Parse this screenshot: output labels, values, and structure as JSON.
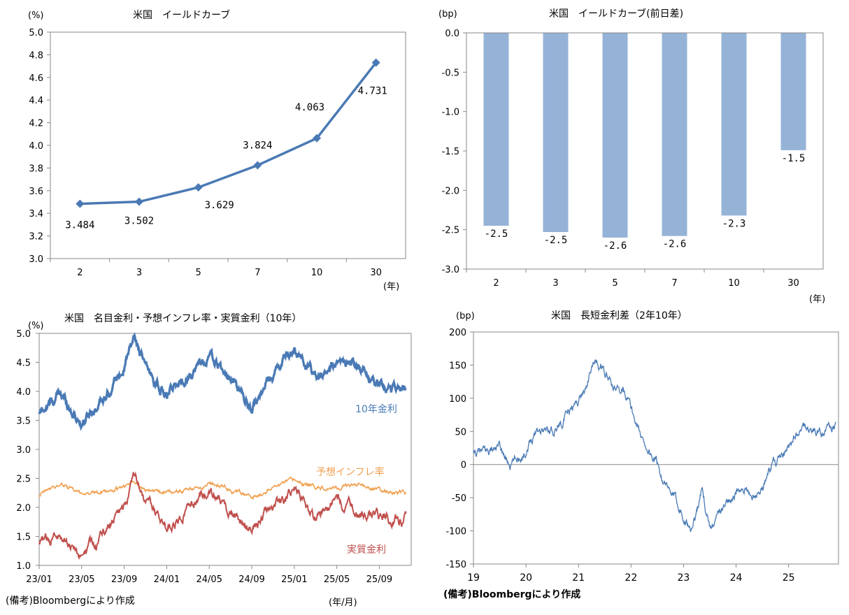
{
  "chart_data": [
    {
      "type": "line",
      "title": "米国　イールドカーブ",
      "yunit": "(%)",
      "xunit": "(年)",
      "categories": [
        "2",
        "3",
        "5",
        "7",
        "10",
        "30"
      ],
      "values": [
        3.484,
        3.502,
        3.629,
        3.824,
        4.063,
        4.731
      ],
      "data_labels": [
        "3.484",
        "3.502",
        "3.629",
        "3.824",
        "4.063",
        "4.731"
      ],
      "ylim": [
        3.0,
        5.0
      ],
      "yticks": [
        "3.0",
        "3.2",
        "3.4",
        "3.6",
        "3.8",
        "4.0",
        "4.2",
        "4.4",
        "4.6",
        "4.8",
        "5.0"
      ],
      "color": "#4a7ab5",
      "grid": false
    },
    {
      "type": "bar",
      "title": "米国　イールドカーブ(前日差)",
      "yunit": "(bp)",
      "xunit": "(年)",
      "categories": [
        "2",
        "3",
        "5",
        "7",
        "10",
        "30"
      ],
      "values": [
        -2.45,
        -2.53,
        -2.6,
        -2.58,
        -2.32,
        -1.49
      ],
      "data_labels": [
        "-2.5",
        "-2.5",
        "-2.6",
        "-2.6",
        "-2.3",
        "-1.5"
      ],
      "ylim": [
        -3.0,
        0.0
      ],
      "yticks": [
        "0.0",
        "-0.5",
        "-1.0",
        "-1.5",
        "-2.0",
        "-2.5",
        "-3.0"
      ],
      "color": "#95b3d7",
      "grid": false
    },
    {
      "type": "line",
      "title": "米国　名目金利・予想インフレ率・実質金利（10年）",
      "yunit": "(%)",
      "xunit": "(年/月)",
      "x": [
        "23/01",
        "23/03",
        "23/05",
        "23/07",
        "23/09",
        "23/10",
        "23/11",
        "24/01",
        "24/03",
        "24/05",
        "24/07",
        "24/09",
        "24/11",
        "25/01",
        "25/03",
        "25/05",
        "25/07",
        "25/09",
        "25/11"
      ],
      "xticks": [
        "23/01",
        "23/05",
        "23/09",
        "24/01",
        "24/05",
        "24/09",
        "25/01",
        "25/05",
        "25/09"
      ],
      "series": [
        {
          "name": "10年金利",
          "color": "#4a7ab5",
          "values": [
            3.6,
            3.95,
            3.45,
            3.9,
            4.4,
            4.95,
            4.4,
            3.9,
            4.3,
            4.6,
            4.2,
            3.7,
            4.3,
            4.75,
            4.25,
            4.45,
            4.4,
            4.1,
            4.05
          ]
        },
        {
          "name": "予想インフレ率",
          "color": "#f0a050",
          "values": [
            2.2,
            2.4,
            2.25,
            2.25,
            2.35,
            2.45,
            2.3,
            2.25,
            2.3,
            2.4,
            2.3,
            2.15,
            2.35,
            2.45,
            2.35,
            2.35,
            2.4,
            2.3,
            2.25
          ]
        },
        {
          "name": "実質金利",
          "color": "#c0504d",
          "values": [
            1.4,
            1.55,
            1.15,
            1.55,
            2.0,
            2.5,
            2.1,
            1.65,
            2.0,
            2.25,
            1.9,
            1.6,
            2.0,
            2.3,
            1.85,
            2.1,
            1.95,
            1.8,
            1.8
          ]
        }
      ],
      "ylim": [
        1.0,
        5.0
      ],
      "yticks": [
        "1.0",
        "1.5",
        "2.0",
        "2.5",
        "3.0",
        "3.5",
        "4.0",
        "4.5",
        "5.0"
      ],
      "grid": false
    },
    {
      "type": "line",
      "title": "米国　長短金利差（2年10年）",
      "yunit": "(bp)",
      "x": [
        2019.0,
        2019.5,
        2019.7,
        2020.0,
        2020.2,
        2020.5,
        2020.8,
        2021.1,
        2021.3,
        2021.5,
        2021.7,
        2021.85,
        2022.0,
        2022.2,
        2022.5,
        2022.7,
        2022.9,
        2023.15,
        2023.35,
        2023.5,
        2023.8,
        2024.0,
        2024.3,
        2024.5,
        2024.7,
        2024.9,
        2025.0,
        2025.3,
        2025.6,
        2025.9
      ],
      "values": [
        15,
        25,
        0,
        20,
        55,
        50,
        75,
        110,
        155,
        140,
        110,
        120,
        85,
        40,
        0,
        -40,
        -60,
        -100,
        -40,
        -95,
        -60,
        -40,
        -45,
        -35,
        5,
        10,
        30,
        55,
        50,
        55
      ],
      "xticks": [
        "19",
        "20",
        "21",
        "22",
        "23",
        "24",
        "25"
      ],
      "xlim": [
        2019.0,
        2025.95
      ],
      "ylim": [
        -150,
        200
      ],
      "yticks": [
        "-150",
        "-100",
        "-50",
        "0",
        "50",
        "100",
        "150",
        "200"
      ],
      "color": "#4a7ab5",
      "grid": false
    }
  ],
  "notes": {
    "left": "(備考)Bloombergにより作成",
    "right": "(備考)Bloombergにより作成"
  }
}
